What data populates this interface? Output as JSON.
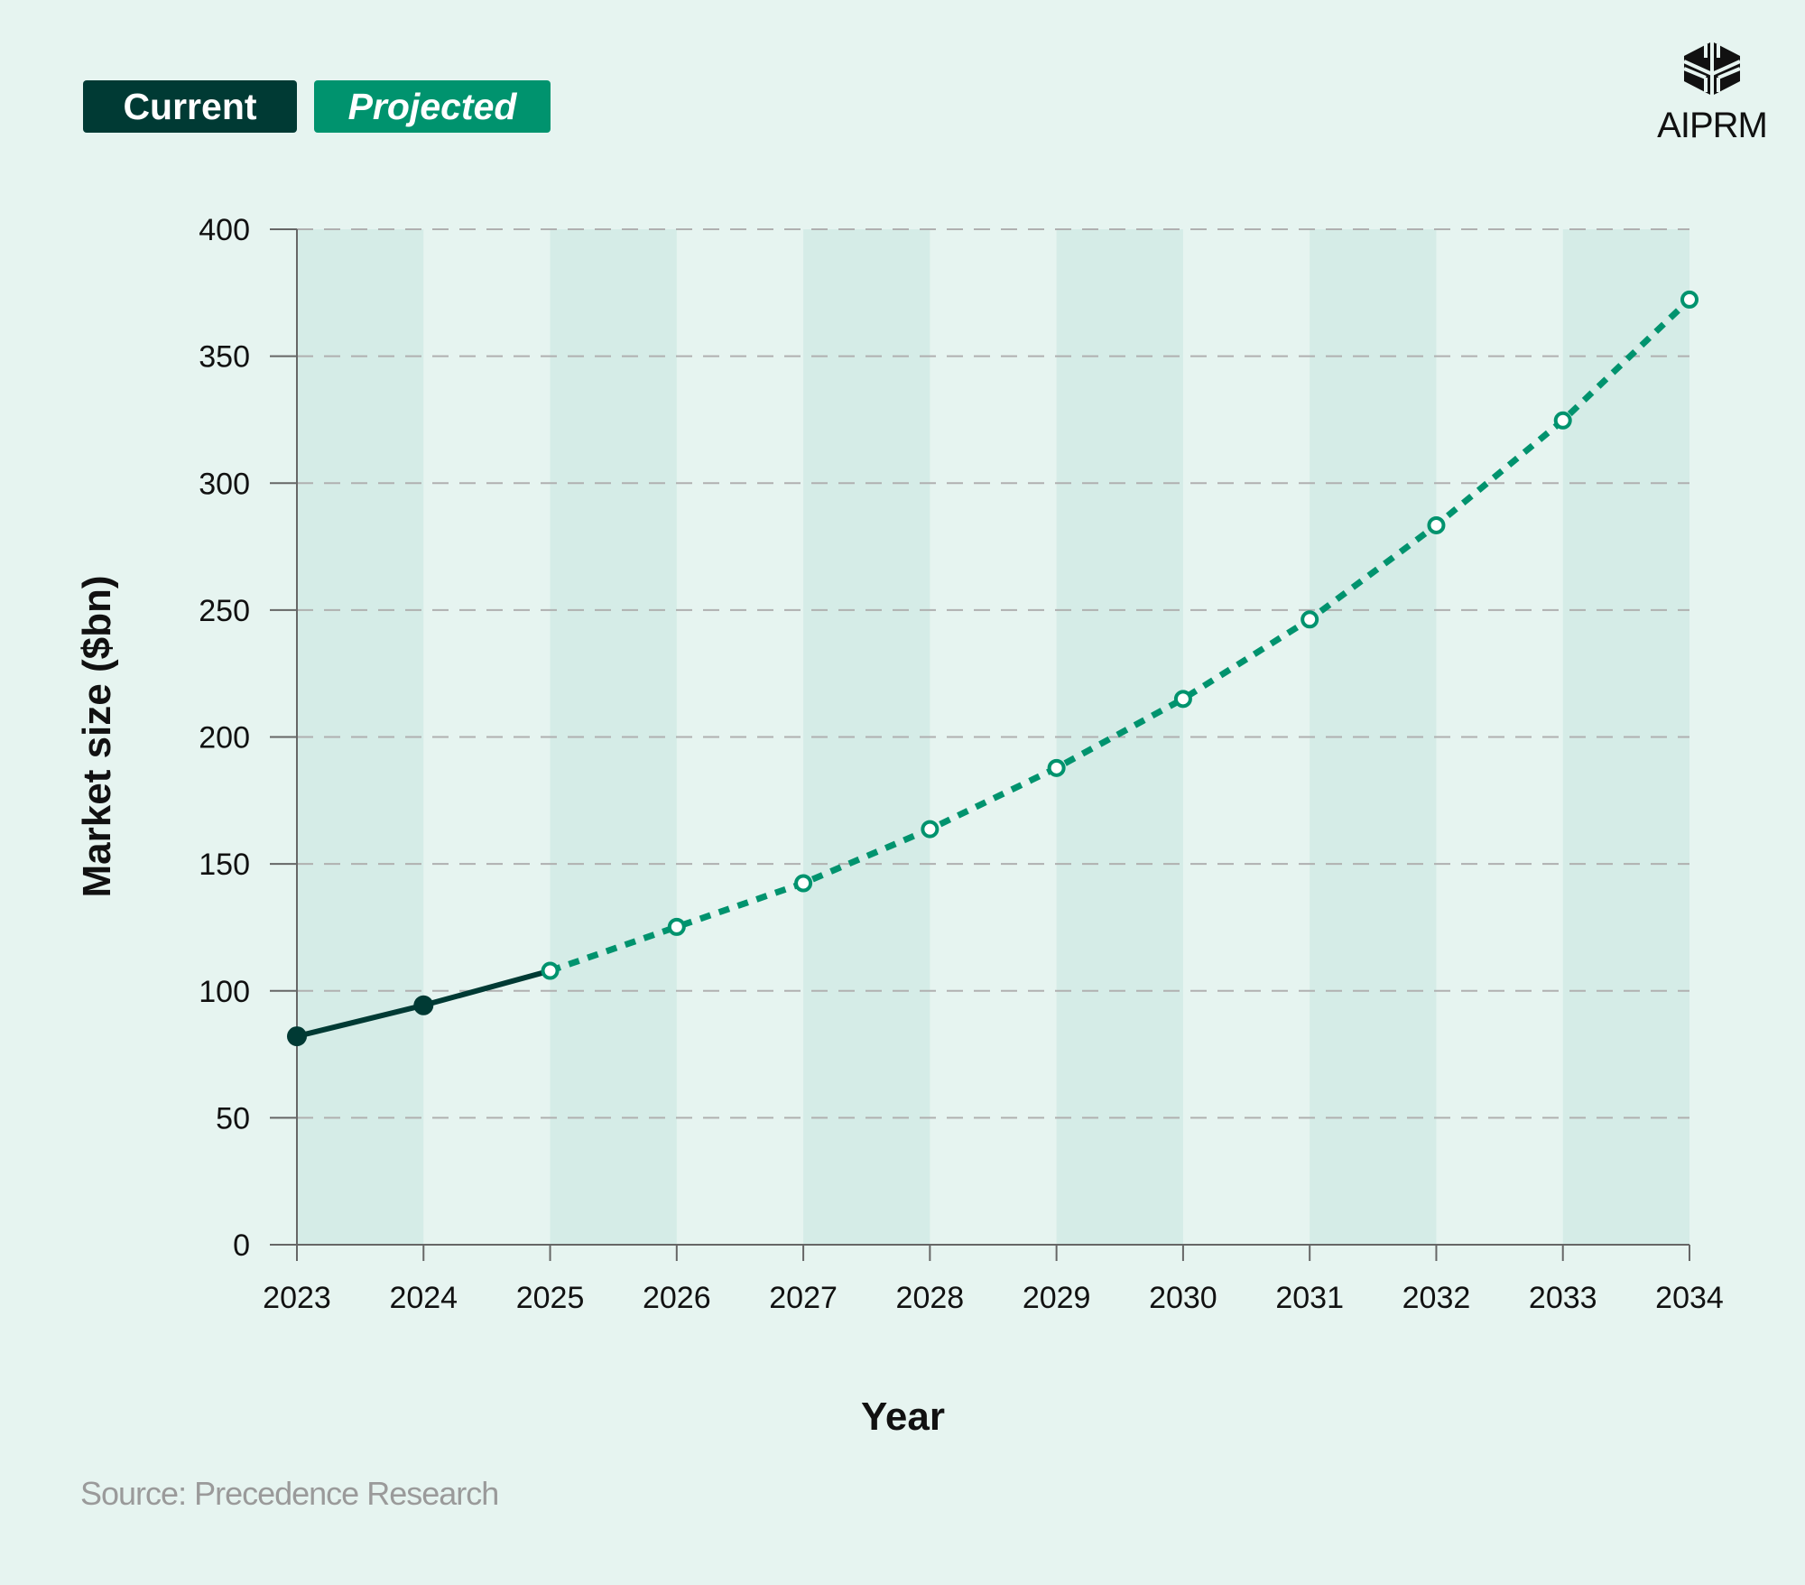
{
  "legend": {
    "current": "Current",
    "projected": "Projected"
  },
  "logo": {
    "text": "AIPRM"
  },
  "source": "Source: Precedence Research",
  "colors": {
    "background": "#e6f4f0",
    "stripe": "#d5ece7",
    "current": "#003a34",
    "projected": "#00936e",
    "grid": "#b0b0b0",
    "axis": "#666666"
  },
  "chart_data": {
    "type": "line",
    "title": "",
    "xlabel": "Year",
    "ylabel": "Market size ($bn)",
    "ylim": [
      0,
      400
    ],
    "yticks": [
      0,
      50,
      100,
      150,
      200,
      250,
      300,
      350,
      400
    ],
    "x": [
      2023,
      2024,
      2025,
      2026,
      2027,
      2028,
      2029,
      2030,
      2031,
      2032,
      2033,
      2034
    ],
    "series": [
      {
        "name": "Current",
        "x": [
          2023,
          2024,
          2025
        ],
        "values": [
          82.1,
          94.3,
          107.9
        ],
        "style": "solid"
      },
      {
        "name": "Projected",
        "x": [
          2025,
          2026,
          2027,
          2028,
          2029,
          2030,
          2031,
          2032,
          2033,
          2034
        ],
        "values": [
          107.9,
          125.2,
          142.4,
          163.7,
          187.8,
          215.0,
          246.3,
          283.4,
          324.7,
          372.3
        ],
        "style": "dotted"
      }
    ],
    "grid": "horizontal dashed",
    "legend_position": "top-left"
  }
}
